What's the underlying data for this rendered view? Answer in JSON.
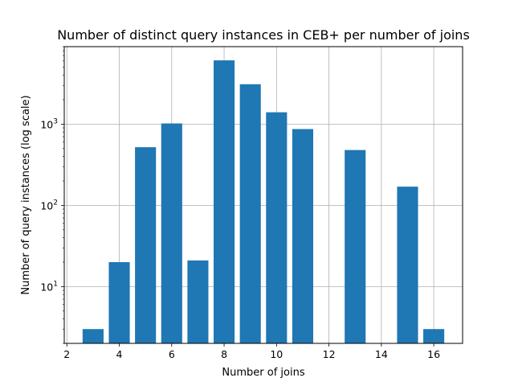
{
  "chart_data": {
    "type": "bar",
    "title": "Number of distinct query instances in CEB+ per number of joins",
    "xlabel": "Number of joins",
    "ylabel": "Number of query instances (log scale)",
    "x": [
      3,
      4,
      5,
      6,
      7,
      8,
      9,
      10,
      11,
      13,
      15,
      16
    ],
    "values": [
      3,
      20,
      520,
      1020,
      21,
      6100,
      3100,
      1400,
      870,
      480,
      170,
      3
    ],
    "xlim": [
      1.9,
      17.1
    ],
    "ylim": [
      2.0,
      9000
    ],
    "yscale": "log",
    "xticks": [
      2,
      4,
      6,
      8,
      10,
      12,
      14,
      16
    ],
    "xtick_labels": [
      "2",
      "4",
      "6",
      "8",
      "10",
      "12",
      "14",
      "16"
    ],
    "yticks_major": [
      10,
      100,
      1000
    ],
    "ytick_labels": [
      {
        "base": "10",
        "exp": "1"
      },
      {
        "base": "10",
        "exp": "2"
      },
      {
        "base": "10",
        "exp": "3"
      }
    ],
    "grid": true,
    "bar_color": "#1f77b4",
    "grid_color": "#b0b0b0"
  }
}
